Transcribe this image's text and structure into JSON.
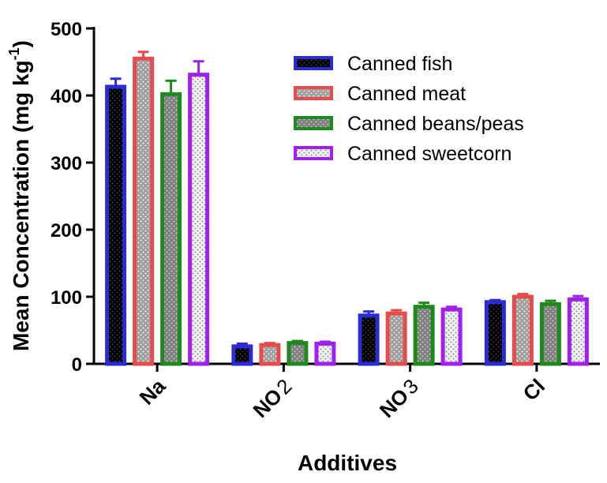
{
  "chart_data": {
    "type": "bar",
    "title": "",
    "xlabel": "Additives",
    "ylabel_main": "Mean Concentration (mg kg",
    "ylabel_sup": "-1",
    "ylabel_close": ")",
    "ylim": [
      0,
      500
    ],
    "yticks": [
      "0",
      "100",
      "200",
      "300",
      "400",
      "500"
    ],
    "ytick_values": [
      0,
      100,
      200,
      300,
      400,
      500
    ],
    "categories": [
      {
        "base": "Na",
        "sub": ""
      },
      {
        "base": "NO",
        "sub": "2"
      },
      {
        "base": "NO",
        "sub": "3"
      },
      {
        "base": "Cl",
        "sub": ""
      }
    ],
    "legend_position": "top-right",
    "series": [
      {
        "name": "Canned fish",
        "color": "#2b2bd9",
        "fill": "#000000",
        "dot": "#4a4a4a",
        "values": [
          413,
          26,
          72,
          92
        ],
        "errors": [
          12,
          4,
          6,
          3
        ]
      },
      {
        "name": "Canned meat",
        "color": "#e84b4b",
        "fill": "#a0a0a0",
        "dot": "#ffffff",
        "values": [
          455,
          28,
          75,
          100
        ],
        "errors": [
          10,
          3,
          5,
          4
        ]
      },
      {
        "name": "Canned beans/peas",
        "color": "#1e8a1e",
        "fill": "#808080",
        "dot": "#d9d9d9",
        "values": [
          402,
          31,
          85,
          89
        ],
        "errors": [
          20,
          3,
          6,
          5
        ]
      },
      {
        "name": "Canned sweetcorn",
        "color": "#a020f0",
        "fill": "#eeeeee",
        "dot": "#808080",
        "values": [
          431,
          30,
          81,
          96
        ],
        "errors": [
          20,
          3,
          4,
          5
        ]
      }
    ]
  }
}
